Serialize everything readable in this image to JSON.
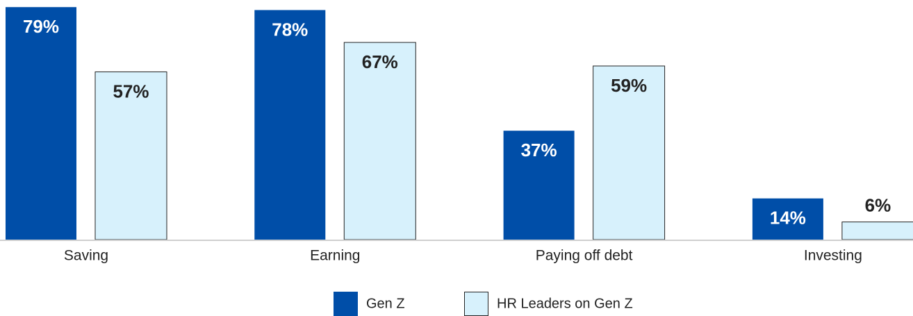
{
  "chart_data": {
    "type": "bar",
    "categories": [
      "Saving",
      "Earning",
      "Paying off debt",
      "Investing"
    ],
    "series": [
      {
        "name": "Gen Z",
        "color": "#004ea8",
        "values": [
          79,
          78,
          37,
          14
        ],
        "value_labels": [
          "79%",
          "78%",
          "37%",
          "14%"
        ]
      },
      {
        "name": "HR Leaders on Gen Z",
        "color": "#d7f1fc",
        "values": [
          57,
          67,
          59,
          6
        ],
        "value_labels": [
          "57%",
          "67%",
          "59%",
          "6%"
        ]
      }
    ],
    "ylim": [
      0,
      80
    ]
  }
}
